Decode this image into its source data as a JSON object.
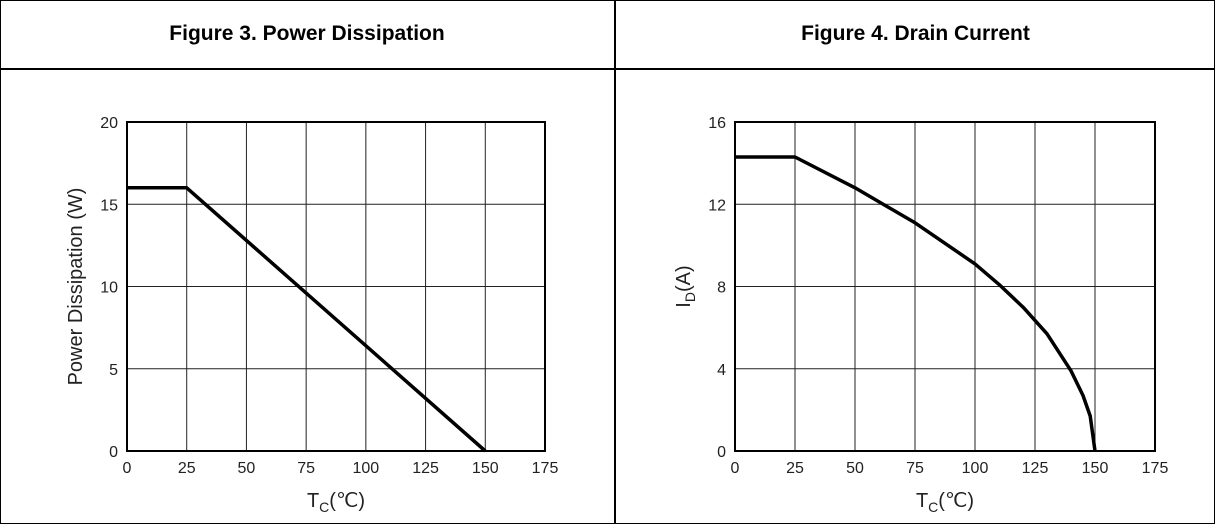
{
  "panels": [
    {
      "title": "Figure 3. Power Dissipation"
    },
    {
      "title": "Figure 4. Drain Current"
    }
  ],
  "chart_data": [
    {
      "type": "line",
      "title": "Figure 3. Power Dissipation",
      "xlabel_main": "T",
      "xlabel_sub": "C",
      "xlabel_unit": "(℃)",
      "ylabel_main": "Power Dissipation (W)",
      "ylabel_sub": "",
      "ylabel_unit": "",
      "xlim": [
        0,
        175
      ],
      "ylim": [
        0,
        20
      ],
      "xticks": [
        0,
        25,
        50,
        75,
        100,
        125,
        150,
        175
      ],
      "yticks": [
        0,
        5,
        10,
        15,
        20
      ],
      "grid": true,
      "series": [
        {
          "x": [
            0,
            25,
            150
          ],
          "y": [
            16,
            16,
            0
          ]
        }
      ]
    },
    {
      "type": "line",
      "title": "Figure 4. Drain Current",
      "xlabel_main": "T",
      "xlabel_sub": "C",
      "xlabel_unit": "(℃)",
      "ylabel_main": "I",
      "ylabel_sub": "D",
      "ylabel_unit": "(A)",
      "xlim": [
        0,
        175
      ],
      "ylim": [
        0,
        16
      ],
      "xticks": [
        0,
        25,
        50,
        75,
        100,
        125,
        150,
        175
      ],
      "yticks": [
        0,
        4,
        8,
        12,
        16
      ],
      "grid": true,
      "series": [
        {
          "x": [
            0,
            25,
            50,
            75,
            100,
            110,
            120,
            130,
            140,
            145,
            148,
            150
          ],
          "y": [
            14.3,
            14.3,
            12.8,
            11.1,
            9.1,
            8.1,
            7.0,
            5.7,
            3.9,
            2.7,
            1.7,
            0
          ]
        }
      ]
    }
  ]
}
